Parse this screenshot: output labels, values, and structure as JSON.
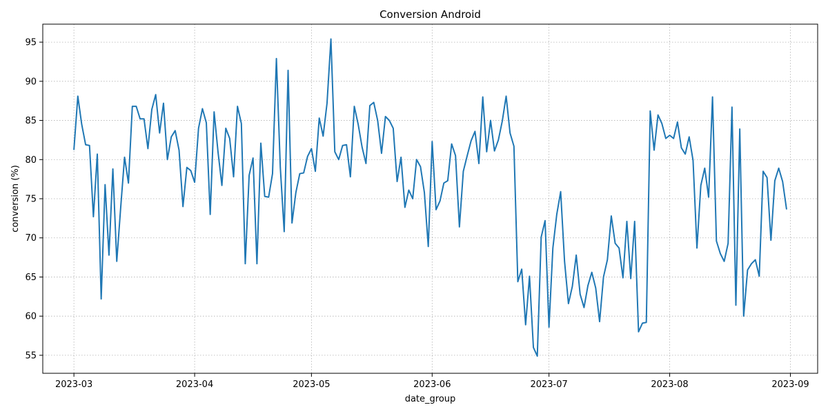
{
  "chart_data": {
    "type": "line",
    "title": "Conversion Android",
    "xlabel": "date_group",
    "ylabel": "conversion (%)",
    "x_range": [
      "2023-02-21",
      "2023-09-08"
    ],
    "ylim": [
      52.7,
      97.3
    ],
    "grid": true,
    "grid_style": "dotted",
    "x_ticks": [
      {
        "date": "2023-03-01",
        "label": "2023-03"
      },
      {
        "date": "2023-04-01",
        "label": "2023-04"
      },
      {
        "date": "2023-05-01",
        "label": "2023-05"
      },
      {
        "date": "2023-06-01",
        "label": "2023-06"
      },
      {
        "date": "2023-07-01",
        "label": "2023-07"
      },
      {
        "date": "2023-08-01",
        "label": "2023-08"
      },
      {
        "date": "2023-09-01",
        "label": "2023-09"
      }
    ],
    "y_ticks": [
      55,
      60,
      65,
      70,
      75,
      80,
      85,
      90,
      95
    ],
    "series": [
      {
        "color": "#1f77b4",
        "start_date": "2023-03-01",
        "values": [
          81.3,
          88.1,
          84.5,
          81.9,
          81.8,
          72.7,
          80.7,
          62.2,
          76.8,
          67.8,
          78.8,
          67.0,
          73.8,
          80.3,
          77.0,
          86.8,
          86.8,
          85.2,
          85.2,
          81.4,
          86.4,
          88.3,
          83.4,
          87.2,
          80.0,
          82.9,
          83.7,
          81.2,
          74.0,
          79.0,
          78.6,
          77.1,
          84.0,
          86.5,
          84.7,
          73.0,
          86.1,
          81.0,
          76.7,
          84.0,
          82.7,
          77.8,
          86.8,
          84.6,
          66.7,
          78.0,
          80.2,
          66.7,
          82.1,
          75.3,
          75.2,
          78.2,
          92.9,
          79.0,
          70.8,
          91.4,
          71.9,
          75.8,
          78.2,
          78.3,
          80.4,
          81.4,
          78.5,
          85.3,
          83.0,
          87.2,
          95.4,
          81.0,
          80.0,
          81.8,
          81.9,
          77.8,
          86.8,
          84.5,
          81.6,
          79.5,
          86.9,
          87.3,
          85.0,
          80.8,
          85.5,
          85.0,
          84.0,
          77.2,
          80.3,
          73.9,
          76.1,
          75.0,
          80.0,
          79.1,
          75.8,
          68.9,
          82.3,
          73.6,
          74.7,
          77.0,
          77.3,
          82.0,
          80.5,
          71.4,
          78.5,
          80.5,
          82.4,
          83.6,
          79.5,
          88.0,
          81.0,
          85.0,
          81.1,
          82.5,
          84.9,
          88.1,
          83.4,
          81.7,
          64.4,
          66.0,
          58.9,
          65.1,
          56.0,
          54.9,
          70.1,
          72.2,
          58.6,
          68.7,
          73.0,
          75.9,
          67.0,
          61.6,
          63.8,
          67.8,
          62.8,
          61.1,
          63.9,
          65.6,
          63.6,
          59.3,
          65.0,
          67.2,
          72.8,
          69.3,
          68.7,
          64.9,
          72.1,
          64.8,
          72.1,
          58.0,
          59.1,
          59.2,
          86.2,
          81.2,
          85.7,
          84.6,
          82.7,
          83.1,
          82.7,
          84.8,
          81.5,
          80.7,
          82.9,
          79.9,
          68.7,
          76.7,
          78.9,
          75.2,
          88.0,
          69.6,
          68.0,
          67.0,
          69.3,
          86.7,
          61.4,
          83.9,
          60.0,
          65.9,
          66.7,
          67.2,
          65.1,
          78.5,
          77.7,
          69.7,
          77.3,
          78.9,
          77.2,
          73.7
        ]
      }
    ]
  }
}
